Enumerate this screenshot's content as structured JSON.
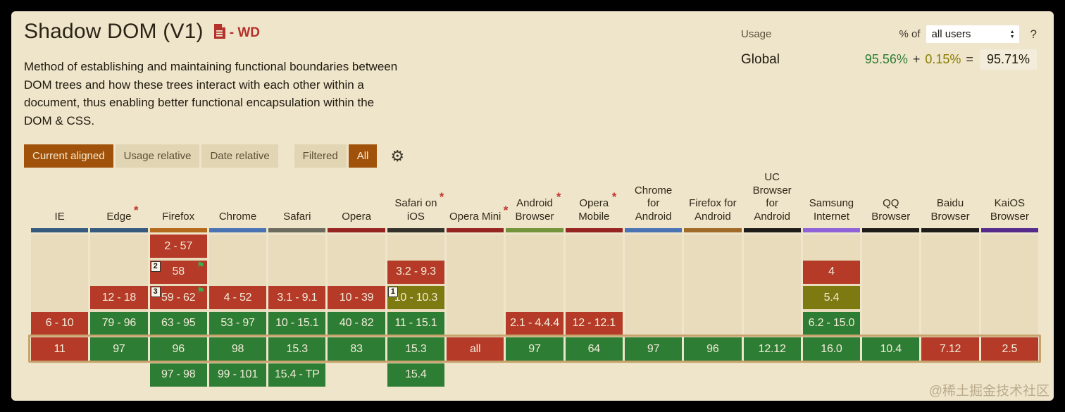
{
  "header": {
    "title": "Shadow DOM (V1)",
    "spec_status": "- WD",
    "description": "Method of establishing and maintaining functional boundaries between DOM trees and how these trees interact with each other within a document, thus enabling better functional encapsulation within the DOM & CSS."
  },
  "usage": {
    "label": "Usage",
    "percent_of_label": "% of",
    "select_value": "all users",
    "help_label": "?",
    "region_label": "Global",
    "supported_percent": "95.56%",
    "plus": "+",
    "partial_percent": "0.15%",
    "equals": "=",
    "total_percent": "95.71%"
  },
  "toolbar": {
    "view_buttons": [
      {
        "label": "Current aligned",
        "active": true
      },
      {
        "label": "Usage relative",
        "active": false
      },
      {
        "label": "Date relative",
        "active": false
      }
    ],
    "filter_buttons": [
      {
        "label": "Filtered",
        "active": false
      },
      {
        "label": "All",
        "active": true
      }
    ]
  },
  "glyphs": {
    "flag": "⚑",
    "gear": "⚙"
  },
  "colors": {
    "y": "#2e7d34",
    "n": "#b53a28",
    "a": "#7d7a11",
    "highlight_border": "#c8a26d",
    "accent_brown": "#a0520b"
  },
  "table": {
    "columns": [
      {
        "name": "IE",
        "label_lines": [
          "IE"
        ],
        "asterisk": false,
        "bar_color": "#36597e",
        "cells": [
          null,
          null,
          null,
          {
            "v": "6 - 10",
            "s": "n"
          },
          {
            "v": "11",
            "s": "n"
          },
          null
        ]
      },
      {
        "name": "Edge",
        "label_lines": [
          "Edge"
        ],
        "asterisk": true,
        "bar_color": "#36597e",
        "cells": [
          null,
          null,
          {
            "v": "12 - 18",
            "s": "n"
          },
          {
            "v": "79 - 96",
            "s": "y"
          },
          {
            "v": "97",
            "s": "y"
          },
          null
        ]
      },
      {
        "name": "Firefox",
        "label_lines": [
          "Firefox"
        ],
        "asterisk": false,
        "bar_color": "#b5691c",
        "cells": [
          {
            "v": "2 - 57",
            "s": "n"
          },
          {
            "v": "58",
            "s": "n",
            "badge": "2",
            "flag": true
          },
          {
            "v": "59 - 62",
            "s": "n",
            "badge": "3",
            "flag": true
          },
          {
            "v": "63 - 95",
            "s": "y"
          },
          {
            "v": "96",
            "s": "y"
          },
          {
            "v": "97 - 98",
            "s": "y"
          }
        ]
      },
      {
        "name": "Chrome",
        "label_lines": [
          "Chrome"
        ],
        "asterisk": false,
        "bar_color": "#4a73b4",
        "cells": [
          null,
          null,
          {
            "v": "4 - 52",
            "s": "n"
          },
          {
            "v": "53 - 97",
            "s": "y"
          },
          {
            "v": "98",
            "s": "y"
          },
          {
            "v": "99 - 101",
            "s": "y"
          }
        ]
      },
      {
        "name": "Safari",
        "label_lines": [
          "Safari"
        ],
        "asterisk": false,
        "bar_color": "#6c6c5e",
        "cells": [
          null,
          null,
          {
            "v": "3.1 - 9.1",
            "s": "n"
          },
          {
            "v": "10 - 15.1",
            "s": "y"
          },
          {
            "v": "15.3",
            "s": "y"
          },
          {
            "v": "15.4 - TP",
            "s": "y"
          }
        ]
      },
      {
        "name": "Opera",
        "label_lines": [
          "Opera"
        ],
        "asterisk": false,
        "bar_color": "#962420",
        "cells": [
          null,
          null,
          {
            "v": "10 - 39",
            "s": "n"
          },
          {
            "v": "40 - 82",
            "s": "y"
          },
          {
            "v": "83",
            "s": "y"
          },
          null
        ]
      },
      {
        "name": "Safari on iOS",
        "label_lines": [
          "Safari on",
          "iOS"
        ],
        "asterisk": true,
        "bar_color": "#34312b",
        "cells": [
          null,
          {
            "v": "3.2 - 9.3",
            "s": "n"
          },
          {
            "v": "10 - 10.3",
            "s": "a",
            "badge": "1"
          },
          {
            "v": "11 - 15.1",
            "s": "y"
          },
          {
            "v": "15.3",
            "s": "y"
          },
          {
            "v": "15.4",
            "s": "y"
          }
        ]
      },
      {
        "name": "Opera Mini",
        "label_lines": [
          "Opera Mini"
        ],
        "asterisk": true,
        "bar_color": "#962420",
        "cells": [
          null,
          null,
          null,
          null,
          {
            "v": "all",
            "s": "n"
          },
          null
        ]
      },
      {
        "name": "Android Browser",
        "label_lines": [
          "Android",
          "Browser"
        ],
        "asterisk": true,
        "bar_color": "#74943c",
        "cells": [
          null,
          null,
          null,
          {
            "v": "2.1 - 4.4.4",
            "s": "n"
          },
          {
            "v": "97",
            "s": "y"
          },
          null
        ]
      },
      {
        "name": "Opera Mobile",
        "label_lines": [
          "Opera",
          "Mobile"
        ],
        "asterisk": true,
        "bar_color": "#962420",
        "cells": [
          null,
          null,
          null,
          {
            "v": "12 - 12.1",
            "s": "n"
          },
          {
            "v": "64",
            "s": "y"
          },
          null
        ]
      },
      {
        "name": "Chrome for Android",
        "label_lines": [
          "Chrome",
          "for",
          "Android"
        ],
        "asterisk": false,
        "bar_color": "#4a73b4",
        "cells": [
          null,
          null,
          null,
          null,
          {
            "v": "97",
            "s": "y"
          },
          null
        ]
      },
      {
        "name": "Firefox for Android",
        "label_lines": [
          "Firefox for",
          "Android"
        ],
        "asterisk": false,
        "bar_color": "#a06a28",
        "cells": [
          null,
          null,
          null,
          null,
          {
            "v": "96",
            "s": "y"
          },
          null
        ]
      },
      {
        "name": "UC Browser for Android",
        "label_lines": [
          "UC",
          "Browser",
          "for",
          "Android"
        ],
        "asterisk": false,
        "bar_color": "#1e1c18",
        "cells": [
          null,
          null,
          null,
          null,
          {
            "v": "12.12",
            "s": "y"
          },
          null
        ]
      },
      {
        "name": "Samsung Internet",
        "label_lines": [
          "Samsung",
          "Internet"
        ],
        "asterisk": false,
        "bar_color": "#8f62d8",
        "cells": [
          null,
          {
            "v": "4",
            "s": "n"
          },
          {
            "v": "5.4",
            "s": "a"
          },
          {
            "v": "6.2 - 15.0",
            "s": "y"
          },
          {
            "v": "16.0",
            "s": "y"
          },
          null
        ]
      },
      {
        "name": "QQ Browser",
        "label_lines": [
          "QQ",
          "Browser"
        ],
        "asterisk": false,
        "bar_color": "#1e1c18",
        "cells": [
          null,
          null,
          null,
          null,
          {
            "v": "10.4",
            "s": "y"
          },
          null
        ]
      },
      {
        "name": "Baidu Browser",
        "label_lines": [
          "Baidu",
          "Browser"
        ],
        "asterisk": false,
        "bar_color": "#1e1c18",
        "cells": [
          null,
          null,
          null,
          null,
          {
            "v": "7.12",
            "s": "n"
          },
          null
        ]
      },
      {
        "name": "KaiOS Browser",
        "label_lines": [
          "KaiOS",
          "Browser"
        ],
        "asterisk": false,
        "bar_color": "#552a8a",
        "cells": [
          null,
          null,
          null,
          null,
          {
            "v": "2.5",
            "s": "n"
          },
          null
        ]
      }
    ]
  },
  "watermark": "@稀土掘金技术社区"
}
